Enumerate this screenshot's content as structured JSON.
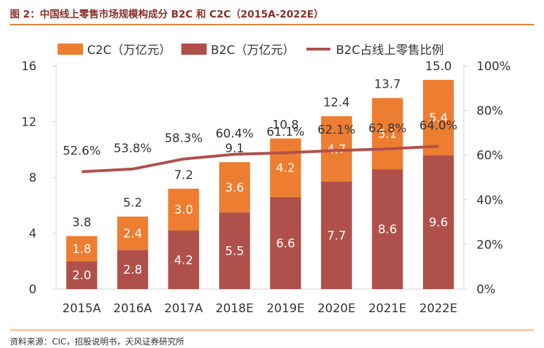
{
  "figure": {
    "title": "图 2：中国线上零售市场规模构成分 B2C 和 C2C（2015A-2022E）",
    "source": "资料来源：CIC，招股说明书，天风证券研究所"
  },
  "colors": {
    "c2c": "#ed7d31",
    "b2c": "#b0504b",
    "line": "#b0504b",
    "accent_rule": "#e07f3a",
    "title": "#8c2f2a"
  },
  "chart_data": {
    "type": "bar",
    "stacked": true,
    "categories": [
      "2015A",
      "2016A",
      "2017A",
      "2018E",
      "2019E",
      "2020E",
      "2021E",
      "2022E"
    ],
    "series": [
      {
        "name": "B2C（万亿元）",
        "values": [
          2.0,
          2.8,
          4.2,
          5.5,
          6.6,
          7.7,
          8.6,
          9.6
        ],
        "labels": [
          "2.0",
          "2.8",
          "4.2",
          "5.5",
          "6.6",
          "7.7",
          "8.6",
          "9.6"
        ]
      },
      {
        "name": "C2C（万亿元）",
        "values": [
          1.8,
          2.4,
          3.0,
          3.6,
          4.2,
          4.7,
          5.1,
          5.4
        ],
        "labels": [
          "1.8",
          "2.4",
          "3.0",
          "3.6",
          "4.2",
          "4.7",
          "5.1",
          "5.4"
        ]
      }
    ],
    "totals": [
      "3.8",
      "5.2",
      "7.2",
      "9.1",
      "10.8",
      "12.4",
      "13.7",
      "15.0"
    ],
    "line": {
      "name": "B2C占线上零售比例",
      "axis": "right",
      "values": [
        52.6,
        53.8,
        58.3,
        60.4,
        61.1,
        62.1,
        62.8,
        64.0
      ],
      "labels": [
        "52.6%",
        "53.8%",
        "58.3%",
        "60.4%",
        "61.1%",
        "62.1%",
        "62.8%",
        "64.0%"
      ]
    },
    "y_left": {
      "ylim": [
        0,
        16
      ],
      "ticks": [
        "0",
        "4",
        "8",
        "12",
        "16"
      ]
    },
    "y_right": {
      "ylim": [
        0,
        100
      ],
      "ticks": [
        "0%",
        "20%",
        "40%",
        "60%",
        "80%",
        "100%"
      ]
    },
    "legend": {
      "placement": "top",
      "items": [
        "C2C（万亿元）",
        "B2C（万亿元）",
        "B2C占线上零售比例"
      ]
    },
    "grid": false
  }
}
